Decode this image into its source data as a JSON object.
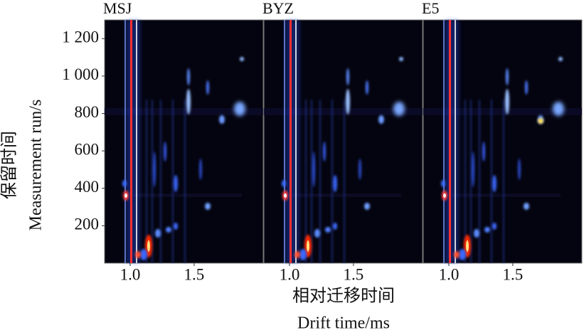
{
  "chart_data": {
    "type": "heatmap",
    "panels": [
      "MSJ",
      "BYZ",
      "E5"
    ],
    "xlabel": [
      "相对迁移时间",
      "Drift time/ms"
    ],
    "ylabel": [
      "保留时间",
      "Measurement run/s"
    ],
    "xlim": [
      0.8,
      2.04
    ],
    "xticks": [
      {
        "value": 1,
        "label": "1.0"
      },
      {
        "value": 1.5,
        "label": "1.5"
      }
    ],
    "ylim": [
      0,
      1300
    ],
    "yticks": [
      200,
      400,
      600,
      800,
      {
        "value": 1000,
        "label": "1 000"
      },
      {
        "value": 1200,
        "label": "1 200"
      }
    ]
  }
}
